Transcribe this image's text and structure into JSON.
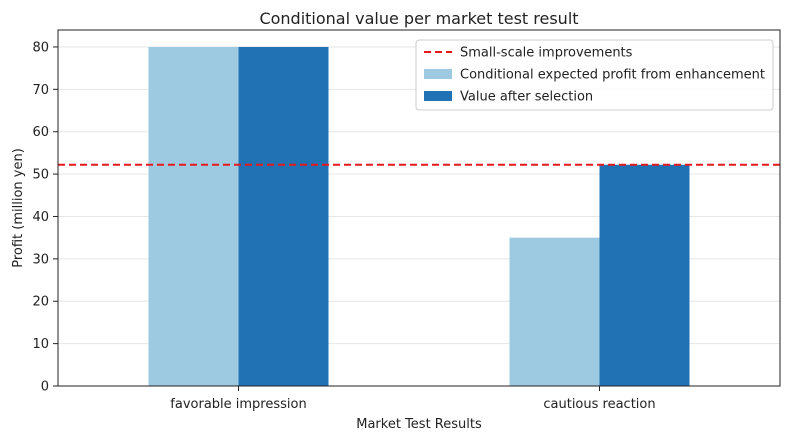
{
  "chart_data": {
    "type": "bar",
    "title": "Conditional value per market test result",
    "xlabel": "Market Test Results",
    "ylabel": "Profit (million yen)",
    "categories": [
      "favorable impression",
      "cautious reaction"
    ],
    "series": [
      {
        "name": "Conditional expected profit from enhancement",
        "values": [
          80,
          35
        ],
        "color": "#9ecae1"
      },
      {
        "name": "Value after selection",
        "values": [
          80,
          52.2
        ],
        "color": "#2171b5"
      }
    ],
    "reference_line": {
      "name": "Small-scale improvements",
      "value": 52.2,
      "color": "#e41a1c",
      "style": "dashed"
    },
    "ylim": [
      0,
      84
    ],
    "yticks": [
      0,
      10,
      20,
      30,
      40,
      50,
      60,
      70,
      80
    ],
    "grid": "horizontal",
    "legend_position": "top-right"
  }
}
